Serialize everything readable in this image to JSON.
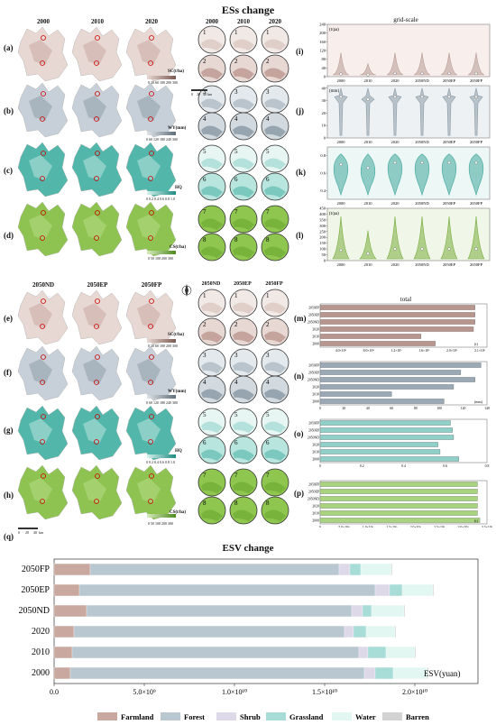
{
  "titles": {
    "ess_change": "ESs change",
    "esv_change": "ESV change",
    "grid_scale": "grid-scale",
    "total": "total"
  },
  "years_top": [
    "2000",
    "2010",
    "2020"
  ],
  "years_bottom": [
    "2050ND",
    "2050EP",
    "2050FP"
  ],
  "panel_labels": [
    "(a)",
    "(b)",
    "(c)",
    "(d)",
    "(e)",
    "(f)",
    "(g)",
    "(h)",
    "(i)",
    "(j)",
    "(k)",
    "(l)",
    "(m)",
    "(n)",
    "(o)",
    "(p)",
    "(q)"
  ],
  "map_legends": [
    {
      "label": "SC(t/ha)",
      "ticks": "0 30 60 100 200 300",
      "color": "#b8968e"
    },
    {
      "label": "WY(mm)",
      "ticks": "0 60 120 180 240 300",
      "color": "#9aa7b3"
    },
    {
      "label": "HQ",
      "ticks": "0 0.2 0.4 0.6 0.8 1.0",
      "color": "#2fa59a"
    },
    {
      "label": "CS(t/ha)",
      "ticks": "0 50 100 200 300",
      "color": "#7cb63a"
    }
  ],
  "scale_bar": {
    "ticks": [
      "0",
      "20",
      "40"
    ],
    "unit": "km"
  },
  "circle_numbers": [
    "1",
    "2",
    "3",
    "4",
    "5",
    "6",
    "7",
    "8"
  ],
  "colors": {
    "sc": "#a8877f",
    "wy": "#8d9aa6",
    "hq": "#62bdb3",
    "cs": "#8fc351",
    "farmland": "#c9a89f",
    "forest": "#b9c7d1",
    "shrub": "#ddd9e8",
    "grassland": "#a8dcd6",
    "water": "#e3f7f2",
    "barren": "#d3d3d3"
  },
  "chart_data": [
    {
      "id": "i",
      "type": "violin",
      "ylabel": "(t/pa)",
      "categories": [
        "2000",
        "2010",
        "2020",
        "2050ND",
        "2050EP",
        "2050FP"
      ],
      "yticks": [
        0,
        40,
        80,
        120,
        160,
        200,
        240
      ],
      "ylim": [
        0,
        240
      ],
      "medians": [
        12,
        8,
        15,
        15,
        15,
        15
      ],
      "color": "#b89d96"
    },
    {
      "id": "j",
      "type": "violin",
      "ylabel": "(mm)",
      "categories": [
        "2000",
        "2010",
        "2020",
        "2050ND",
        "2050EP",
        "2050FP"
      ],
      "yticks": [
        0,
        10,
        20,
        30,
        40
      ],
      "ylim": [
        0,
        42
      ],
      "medians": [
        33,
        31,
        33,
        33,
        33,
        33
      ],
      "color": "#8d9aa6"
    },
    {
      "id": "k",
      "type": "violin",
      "ylabel": "",
      "categories": [
        "2000",
        "2010",
        "2020",
        "2050ND",
        "2050EP",
        "2050FP"
      ],
      "yticks": [
        0.4,
        0.6,
        0.8
      ],
      "ylim": [
        0.3,
        0.9
      ],
      "medians": [
        0.7,
        0.66,
        0.72,
        0.72,
        0.72,
        0.72
      ],
      "color": "#3fa89d"
    },
    {
      "id": "l",
      "type": "violin",
      "ylabel": "(t/pa)",
      "categories": [
        "2000",
        "2010",
        "2020",
        "2050ND",
        "2050EP",
        "2050FP"
      ],
      "yticks": [
        0,
        50,
        100,
        150,
        200,
        250,
        300,
        350,
        400,
        450
      ],
      "ylim": [
        0,
        450
      ],
      "medians": [
        90,
        60,
        100,
        100,
        100,
        100
      ],
      "color": "#79ad3d"
    },
    {
      "id": "m",
      "type": "bar",
      "orientation": "horizontal",
      "categories": [
        "2050FP",
        "2050EP",
        "2050ND",
        "2020",
        "2010",
        "2000"
      ],
      "values": [
        1950000000.0,
        1950000000.0,
        1950000000.0,
        1930000000.0,
        1270000000.0,
        1450000000.0
      ],
      "xlim": [
        0,
        2100000000.0
      ],
      "unit": "(t)",
      "xtick_labels": [
        "4.0×10⁸",
        "8.0×10⁸",
        "1.2×10⁹",
        "1.6×10⁹",
        "2.0×10⁹",
        "2.1×10⁹"
      ],
      "color": "#b8968e"
    },
    {
      "id": "n",
      "type": "bar",
      "orientation": "horizontal",
      "categories": [
        "2050FP",
        "2050EP",
        "2050ND",
        "2020",
        "2010",
        "2000"
      ],
      "values": [
        135,
        118,
        130,
        112,
        60,
        104
      ],
      "xlim": [
        0,
        140
      ],
      "unit": "(mm)",
      "xtick_labels": [
        "0",
        "20",
        "40",
        "60",
        "80",
        "100",
        "120",
        "140"
      ],
      "color": "#9aa9b5"
    },
    {
      "id": "o",
      "type": "bar",
      "orientation": "horizontal",
      "categories": [
        "2050FP",
        "2050EP",
        "2050ND",
        "2020",
        "2010",
        "2000"
      ],
      "values": [
        0.625,
        0.635,
        0.64,
        0.565,
        0.575,
        0.665
      ],
      "xlim": [
        0,
        0.8
      ],
      "xtick_labels": [
        "0",
        "0.2",
        "0.4",
        "0.6",
        "0.8"
      ],
      "color": "#8fd0c9"
    },
    {
      "id": "p",
      "type": "bar",
      "orientation": "horizontal",
      "categories": [
        "2050FP",
        "2050EP",
        "2050ND",
        "2020",
        "2010",
        "2000"
      ],
      "values": [
        3300000000.0,
        3300000000.0,
        3300000000.0,
        3300000000.0,
        3300000000.0,
        3350000000.0
      ],
      "xlim": [
        0,
        3500000000.0
      ],
      "unit": "(t)",
      "xtick_labels": [
        "0",
        "5.0×10⁸",
        "1.0×10⁹",
        "1.5×10⁹",
        "2.0×10⁹",
        "2.5×10⁹",
        "3.0×10⁹",
        "3.5×10⁹"
      ],
      "color": "#a8d47f"
    },
    {
      "id": "q",
      "type": "bar",
      "orientation": "horizontal",
      "stacked": true,
      "categories": [
        "2050FP",
        "2050EP",
        "2050ND",
        "2020",
        "2010",
        "2000"
      ],
      "xlim": [
        0,
        23500000000.0
      ],
      "xticks": [
        0,
        5000000000.0,
        10000000000.0,
        15000000000.0,
        20000000000.0
      ],
      "xtick_labels": [
        "0.0",
        "5.0×10⁹",
        "1.0×10¹⁰",
        "1.5×10¹⁰",
        "2.0×10¹⁰"
      ],
      "xlabel": "ESV(yuan)",
      "series": [
        {
          "name": "Farmland",
          "values": [
            2000000000.0,
            1400000000.0,
            1800000000.0,
            1100000000.0,
            1000000000.0,
            900000000.0
          ]
        },
        {
          "name": "Forest",
          "values": [
            13800000000.0,
            16400000000.0,
            14700000000.0,
            15000000000.0,
            15900000000.0,
            16300000000.0
          ]
        },
        {
          "name": "Shrub",
          "values": [
            600000000.0,
            800000000.0,
            600000000.0,
            500000000.0,
            500000000.0,
            600000000.0
          ]
        },
        {
          "name": "Grassland",
          "values": [
            600000000.0,
            700000000.0,
            500000000.0,
            700000000.0,
            1000000000.0,
            1000000000.0
          ]
        },
        {
          "name": "Water",
          "values": [
            1700000000.0,
            1700000000.0,
            1800000000.0,
            1600000000.0,
            1600000000.0,
            1900000000.0
          ]
        },
        {
          "name": "Barren",
          "values": [
            50000000.0,
            50000000.0,
            50000000.0,
            50000000.0,
            50000000.0,
            50000000.0
          ]
        }
      ]
    }
  ]
}
